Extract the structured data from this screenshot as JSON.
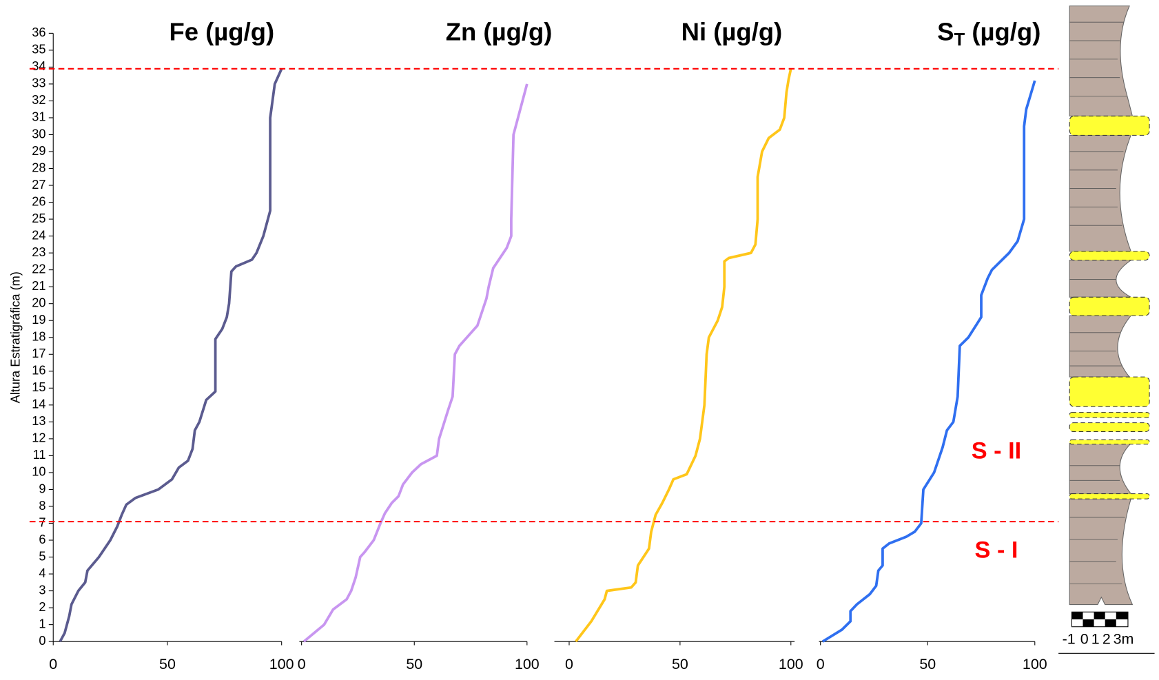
{
  "chart_data": [
    {
      "type": "line",
      "title": "Fe (µg/g)",
      "y_label": "Altura Estratigráfica (m)",
      "color": "#5b5b8f",
      "ylim": [
        0,
        36
      ],
      "yticks": [
        0,
        1,
        2,
        3,
        4,
        5,
        6,
        7,
        8,
        9,
        10,
        11,
        12,
        13,
        14,
        15,
        16,
        17,
        18,
        19,
        20,
        21,
        22,
        23,
        24,
        25,
        26,
        27,
        28,
        29,
        30,
        31,
        32,
        33,
        34,
        35,
        36
      ],
      "xlim": [
        0,
        100
      ],
      "xticks": [
        0,
        50,
        100
      ],
      "reference_lines": [
        33.9,
        7.1
      ],
      "reference_color": "#ff0000",
      "x": [
        3,
        5,
        7,
        8,
        11,
        14,
        15,
        20,
        25,
        28,
        30,
        32,
        36,
        46,
        52,
        55,
        59,
        61,
        62,
        64,
        67,
        71,
        71,
        74,
        76,
        77,
        78,
        80,
        87,
        89,
        92,
        93,
        95,
        95,
        97,
        100
      ],
      "values": [
        0,
        0.5,
        1.5,
        2.2,
        3,
        3.5,
        4.2,
        5,
        6,
        6.8,
        7.5,
        8.1,
        8.5,
        9,
        9.6,
        10.3,
        10.7,
        11.4,
        12.5,
        13,
        14.3,
        14.8,
        17.9,
        18.5,
        19.2,
        20,
        21.9,
        22.2,
        22.6,
        23,
        24,
        24.5,
        25.5,
        31,
        33,
        33.9
      ]
    },
    {
      "type": "line",
      "title": "Zn (µg/g)",
      "color": "#c896f0",
      "ylim": [
        0,
        36
      ],
      "xlim": [
        0,
        100
      ],
      "xticks": [
        0,
        50,
        100
      ],
      "x": [
        1,
        10,
        14,
        20,
        22,
        24,
        26,
        28,
        32,
        35,
        37,
        40,
        43,
        45,
        49,
        53,
        60,
        61,
        65,
        67,
        68,
        70,
        78,
        80,
        82,
        83,
        85,
        91,
        93,
        93,
        94,
        100
      ],
      "values": [
        0,
        1,
        1.9,
        2.5,
        3,
        3.8,
        5,
        5.3,
        6,
        7,
        7.6,
        8.2,
        8.6,
        9.3,
        10,
        10.5,
        11,
        12,
        13.7,
        14.5,
        17,
        17.5,
        18.7,
        19.5,
        20.3,
        21,
        22.1,
        23.3,
        24,
        25,
        30,
        33
      ]
    },
    {
      "type": "line",
      "title": "Ni (µg/g)",
      "color": "#ffc61a",
      "ylim": [
        0,
        36
      ],
      "xlim": [
        0,
        100
      ],
      "xticks": [
        0,
        50,
        100
      ],
      "x": [
        3,
        10,
        16,
        17,
        28,
        30,
        31,
        36,
        37,
        39,
        42,
        45,
        47,
        53,
        57,
        59,
        60,
        61,
        62,
        63,
        65,
        67,
        69,
        70,
        70,
        72,
        82,
        84,
        85,
        85,
        87,
        90,
        95,
        97,
        98,
        99,
        100
      ],
      "values": [
        0,
        1.2,
        2.5,
        3,
        3.2,
        3.5,
        4.5,
        5.5,
        6.5,
        7.5,
        8.2,
        9,
        9.6,
        9.9,
        11,
        12,
        13,
        14,
        17,
        18,
        18.5,
        19,
        19.8,
        21,
        22.5,
        22.7,
        23,
        23.5,
        25,
        27.5,
        29,
        29.8,
        30.3,
        31,
        32.5,
        33.3,
        33.9
      ]
    },
    {
      "type": "line",
      "title": "S",
      "title_subscript": "T",
      "title_suffix": " (µg/g)",
      "color": "#2f6ff0",
      "ylim": [
        0,
        36
      ],
      "xlim": [
        0,
        100
      ],
      "xticks": [
        0,
        50,
        100
      ],
      "annotations": [
        "S - II",
        "S - I"
      ],
      "x": [
        1,
        10,
        14,
        14,
        17,
        23,
        26,
        27,
        29,
        29,
        32,
        40,
        44,
        47,
        48,
        53,
        57,
        59,
        62,
        64,
        65,
        69,
        74,
        75,
        75,
        78,
        80,
        88,
        92,
        95,
        95,
        96,
        100
      ],
      "values": [
        0,
        0.7,
        1.2,
        1.8,
        2.2,
        2.8,
        3.3,
        4.2,
        4.5,
        5.5,
        5.8,
        6.2,
        6.5,
        7,
        9,
        10,
        11.5,
        12.5,
        13,
        14.5,
        17.5,
        18,
        19,
        19.2,
        20.5,
        21.5,
        22,
        23,
        23.7,
        25,
        30.5,
        31.5,
        33.2
      ]
    }
  ],
  "lithology": {
    "scale_labels": [
      "-1",
      "0",
      "1",
      "2",
      "3m"
    ]
  }
}
